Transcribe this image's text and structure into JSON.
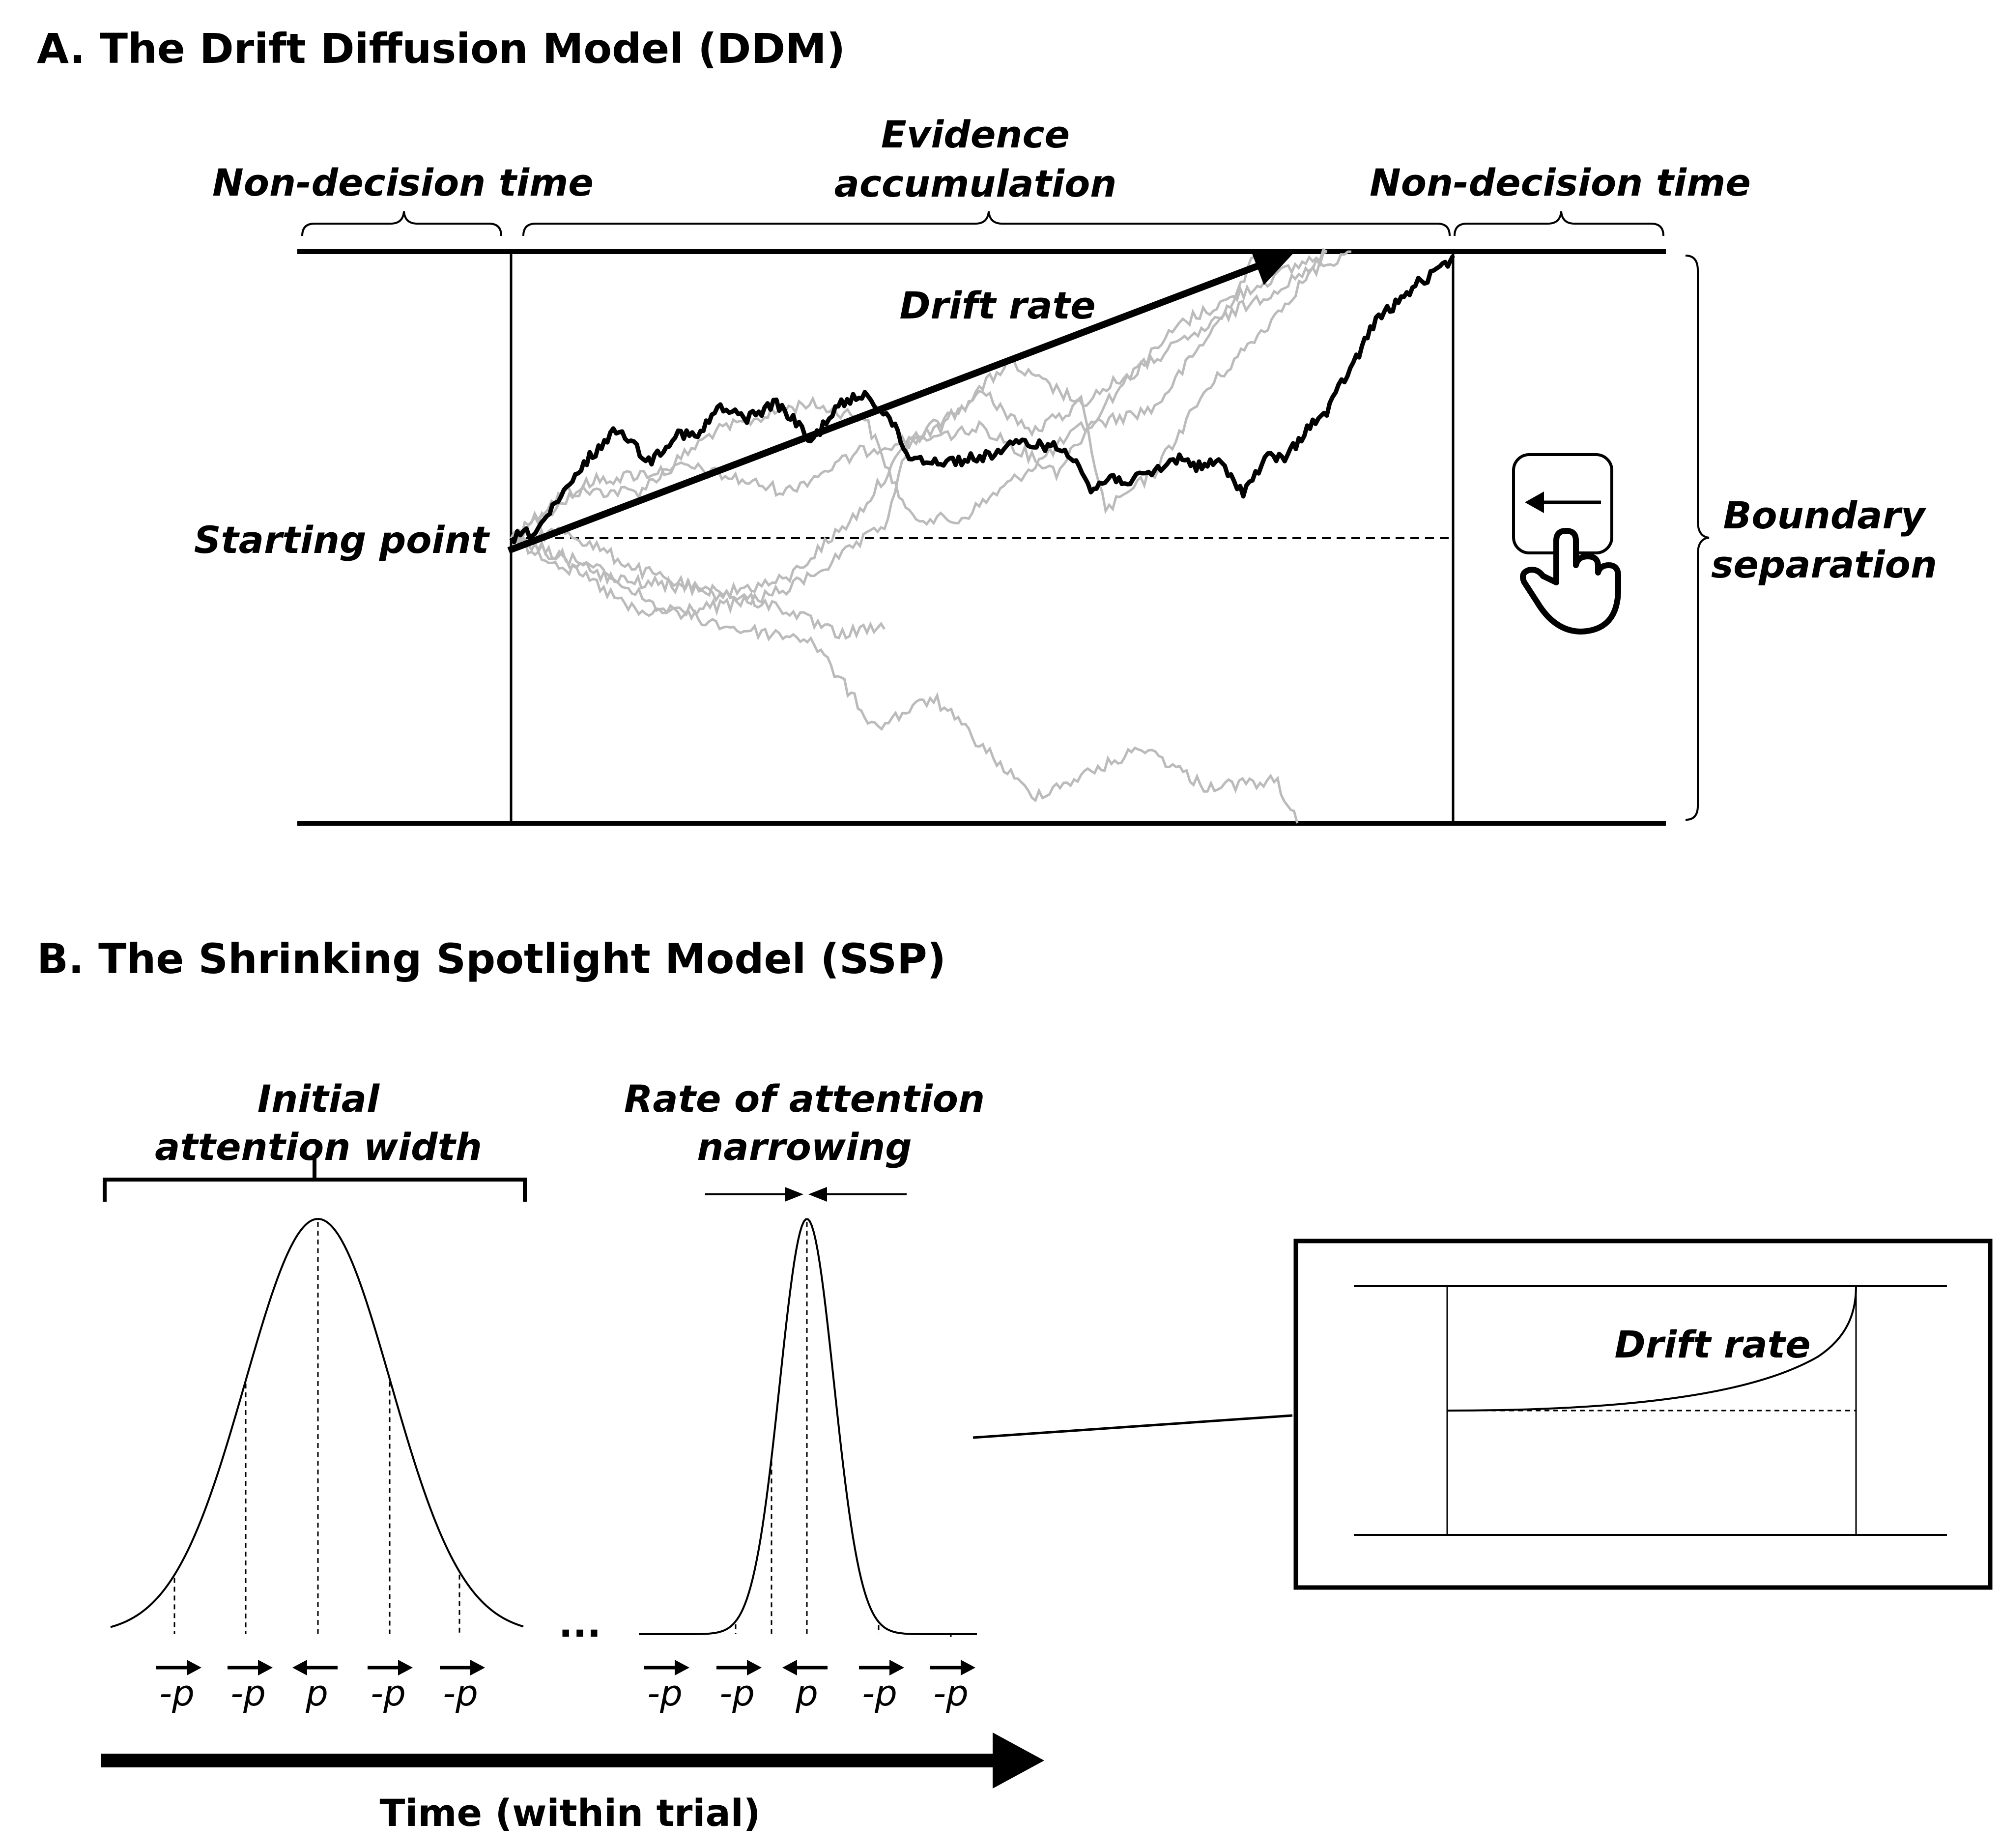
{
  "panel_a": {
    "title": "A. The Drift Diffusion Model (DDM)",
    "non_decision_left": "Non-decision time",
    "evidence_line1": "Evidence",
    "evidence_line2": "accumulation",
    "non_decision_right": "Non-decision time",
    "drift_rate": "Drift rate",
    "starting_point": "Starting point",
    "boundary_line1": "Boundary",
    "boundary_line2": "separation",
    "response_icon": "keyboard-left-arrow-key-press-icon"
  },
  "panel_b": {
    "title": "B. The Shrinking Spotlight Model (SSP)",
    "initial_line1": "Initial",
    "initial_line2": "attention width",
    "rate_line1": "Rate of attention",
    "rate_line2": "narrowing",
    "ellipsis": "...",
    "wide_labels": [
      "-p",
      "-p",
      "p",
      "-p",
      "-p"
    ],
    "narrow_labels": [
      "-p",
      "-p",
      "p",
      "-p",
      "-p"
    ],
    "inset_drift_rate": "Drift rate",
    "time_axis": "Time (within trial)"
  },
  "colors": {
    "ink": "#000000",
    "sample_paths": "#bbbbbb"
  }
}
